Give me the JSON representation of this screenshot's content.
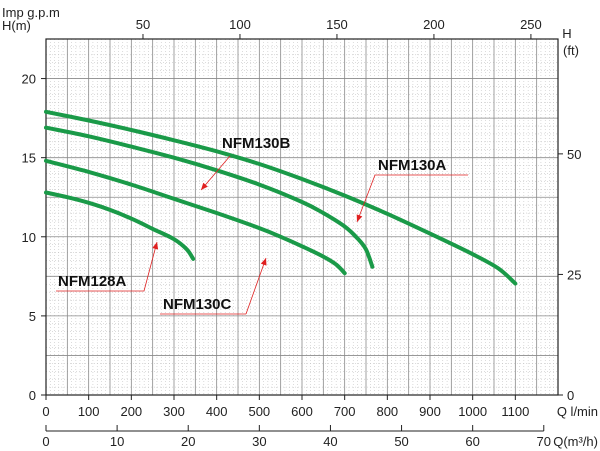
{
  "chart_data": {
    "type": "line",
    "x_unit_label": "Q l/min",
    "x_range": [
      0,
      1200
    ],
    "x_ticks": [
      0,
      100,
      200,
      300,
      400,
      500,
      600,
      700,
      800,
      900,
      1000,
      1100
    ],
    "y_unit_label": "H(m)",
    "y_range": [
      0,
      22.5
    ],
    "y_ticks": [
      0,
      5,
      10,
      15,
      20
    ],
    "y2_unit_label_line1": "H",
    "y2_unit_label_line2": "(ft)",
    "y2_ticks": [
      0,
      25,
      50
    ],
    "top_axis_label": "Imp g.p.m",
    "top_ticks": [
      50,
      100,
      150,
      200,
      250
    ],
    "bottom2_axis_label": "Q(m³/h)",
    "bottom2_ticks": [
      0,
      10,
      20,
      30,
      40,
      50,
      60,
      70
    ],
    "grid": true,
    "series_color": "#1a9a48",
    "annotation_color": "#e02020",
    "series": [
      {
        "name": "NFM130A",
        "points": [
          [
            0,
            17.9
          ],
          [
            100,
            17.35
          ],
          [
            200,
            16.75
          ],
          [
            300,
            16.1
          ],
          [
            400,
            15.4
          ],
          [
            500,
            14.6
          ],
          [
            600,
            13.65
          ],
          [
            700,
            12.6
          ],
          [
            800,
            11.45
          ],
          [
            900,
            10.2
          ],
          [
            1000,
            8.9
          ],
          [
            1060,
            8.0
          ],
          [
            1100,
            7.05
          ]
        ]
      },
      {
        "name": "NFM130B",
        "points": [
          [
            0,
            16.9
          ],
          [
            100,
            16.35
          ],
          [
            200,
            15.7
          ],
          [
            300,
            15.0
          ],
          [
            400,
            14.2
          ],
          [
            500,
            13.3
          ],
          [
            600,
            12.2
          ],
          [
            650,
            11.5
          ],
          [
            700,
            10.65
          ],
          [
            730,
            9.9
          ],
          [
            750,
            9.2
          ],
          [
            765,
            8.1
          ]
        ]
      },
      {
        "name": "NFM130C",
        "points": [
          [
            0,
            14.8
          ],
          [
            100,
            14.1
          ],
          [
            200,
            13.3
          ],
          [
            300,
            12.4
          ],
          [
            400,
            11.5
          ],
          [
            500,
            10.55
          ],
          [
            550,
            10.0
          ],
          [
            600,
            9.4
          ],
          [
            650,
            8.75
          ],
          [
            680,
            8.25
          ],
          [
            700,
            7.7
          ]
        ]
      },
      {
        "name": "NFM128A",
        "points": [
          [
            0,
            12.8
          ],
          [
            50,
            12.5
          ],
          [
            100,
            12.15
          ],
          [
            150,
            11.7
          ],
          [
            200,
            11.15
          ],
          [
            250,
            10.5
          ],
          [
            300,
            9.85
          ],
          [
            330,
            9.2
          ],
          [
            345,
            8.6
          ]
        ]
      }
    ],
    "labels": [
      {
        "text": "NFM130A",
        "ref": "NFM130A"
      },
      {
        "text": "NFM130B",
        "ref": "NFM130B"
      },
      {
        "text": "NFM130C",
        "ref": "NFM130C"
      },
      {
        "text": "NFM128A",
        "ref": "NFM128A"
      }
    ]
  }
}
